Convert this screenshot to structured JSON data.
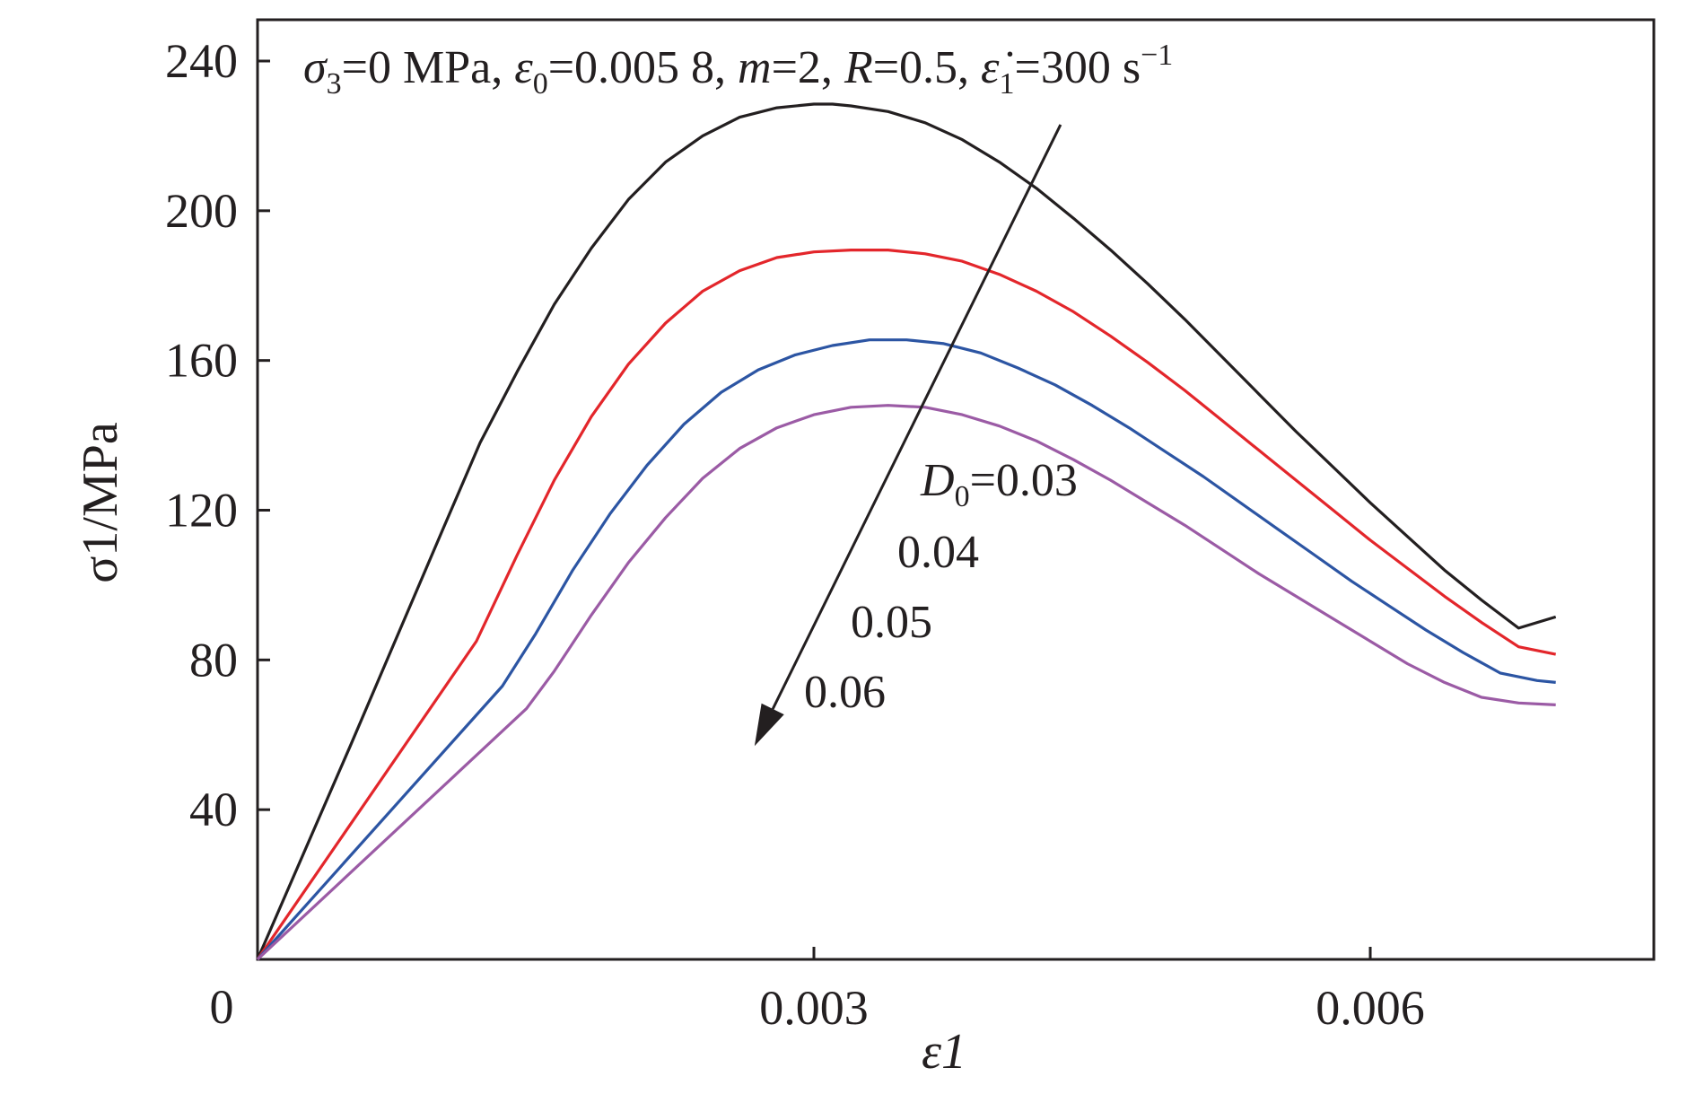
{
  "chart_data": {
    "type": "line",
    "xlabel": "ε1",
    "ylabel": "σ1/MPa",
    "xlim": [
      0,
      0.0075
    ],
    "ylim": [
      0,
      240
    ],
    "x_ticks": [
      0.003,
      0.006
    ],
    "x_tick_labels": [
      "0.003",
      "0.006"
    ],
    "y_ticks": [
      40,
      80,
      120,
      160,
      200,
      240
    ],
    "y_tick_labels": [
      "40",
      "80",
      "120",
      "160",
      "200",
      "240"
    ],
    "origin_label": "0",
    "grid": false,
    "annotation": {
      "text": "σ3=0 MPa, ε0=0.005 8, m=2, R=0.5, ε̇1=300 s−1",
      "s3": "σ",
      "s3_sub": "3",
      "s3_tail": "=0 MPa, ",
      "e0": "ε",
      "e0_sub": "0",
      "e0_tail": "=0.005 8, ",
      "m": "m",
      "m_tail": "=2, ",
      "R": "R",
      "R_tail": "=0.5, ",
      "ed": "ε̇",
      "ed_sub": "1",
      "ed_tail": "=300 s",
      "ed_sup": "−1"
    },
    "arrow_label": {
      "prefix": "D",
      "prefix_sub": "0",
      "prefix_tail": "=0.03",
      "values": [
        "0.04",
        "0.05",
        "0.06"
      ]
    },
    "series": [
      {
        "name": "D0=0.03",
        "color": "#231f20",
        "x": [
          0,
          0.0005,
          0.001,
          0.0012,
          0.0014,
          0.0016,
          0.0018,
          0.002,
          0.0022,
          0.0024,
          0.0026,
          0.0028,
          0.003,
          0.0031,
          0.0032,
          0.0034,
          0.0036,
          0.0038,
          0.004,
          0.0042,
          0.0044,
          0.0046,
          0.0048,
          0.005,
          0.0052,
          0.0054,
          0.0056,
          0.0058,
          0.006,
          0.0062,
          0.0064,
          0.0066,
          0.0068,
          0.007
        ],
        "y": [
          0,
          57,
          115,
          138,
          157,
          175,
          190,
          203,
          213,
          220,
          225,
          227.5,
          228.5,
          228.5,
          228,
          226.5,
          223.5,
          219,
          213,
          206,
          198,
          189.5,
          180.5,
          171,
          161,
          151,
          141,
          131.5,
          122,
          113,
          104,
          96,
          88.5,
          91.5
        ]
      },
      {
        "name": "D0=0.04",
        "color": "#e3262b",
        "x": [
          0,
          0.00118,
          0.0014,
          0.0016,
          0.0018,
          0.002,
          0.0022,
          0.0024,
          0.0026,
          0.0028,
          0.003,
          0.0032,
          0.0034,
          0.0036,
          0.0038,
          0.004,
          0.0042,
          0.0044,
          0.0046,
          0.0048,
          0.005,
          0.0052,
          0.0054,
          0.0056,
          0.0058,
          0.006,
          0.0062,
          0.0064,
          0.0066,
          0.0068,
          0.007
        ],
        "y": [
          0,
          85,
          108,
          128,
          145,
          159,
          170,
          178.5,
          184,
          187.5,
          189,
          189.5,
          189.5,
          188.5,
          186.5,
          183,
          178.5,
          173,
          166.5,
          159.5,
          152,
          144,
          136,
          128,
          120,
          112,
          104.5,
          97,
          90,
          83.5,
          81.5
        ]
      },
      {
        "name": "D0=0.05",
        "color": "#2c55a3",
        "x": [
          0,
          0.00132,
          0.0015,
          0.0017,
          0.0019,
          0.0021,
          0.0023,
          0.0025,
          0.0027,
          0.0029,
          0.0031,
          0.0033,
          0.0035,
          0.0037,
          0.0039,
          0.0041,
          0.0043,
          0.0045,
          0.0047,
          0.0049,
          0.0051,
          0.0053,
          0.0055,
          0.0057,
          0.0059,
          0.0061,
          0.0063,
          0.0065,
          0.0067,
          0.0069,
          0.007
        ],
        "y": [
          0,
          73,
          87,
          104,
          119,
          132,
          143,
          151.5,
          157.5,
          161.5,
          164,
          165.5,
          165.5,
          164.5,
          162,
          158,
          153.5,
          148,
          142,
          135.5,
          129,
          122,
          115,
          108,
          101,
          94.5,
          88,
          82,
          76.5,
          74.5,
          74
        ]
      },
      {
        "name": "D0=0.06",
        "color": "#9b5ba5",
        "x": [
          0,
          0.00145,
          0.0016,
          0.0018,
          0.002,
          0.0022,
          0.0024,
          0.0026,
          0.0028,
          0.003,
          0.0032,
          0.0034,
          0.0036,
          0.0038,
          0.004,
          0.0042,
          0.0044,
          0.0046,
          0.0048,
          0.005,
          0.0052,
          0.0054,
          0.0056,
          0.0058,
          0.006,
          0.0062,
          0.0064,
          0.0066,
          0.0068,
          0.007
        ],
        "y": [
          0,
          67,
          77,
          92,
          106,
          118,
          128.5,
          136.5,
          142,
          145.5,
          147.5,
          148,
          147.5,
          145.5,
          142.5,
          138.5,
          133.5,
          128,
          122,
          116,
          109.5,
          103,
          97,
          91,
          85,
          79,
          74,
          70,
          68.5,
          68
        ]
      }
    ],
    "arrow": {
      "from": [
        0.00433,
        223
      ],
      "to": [
        0.00268,
        57
      ]
    }
  }
}
